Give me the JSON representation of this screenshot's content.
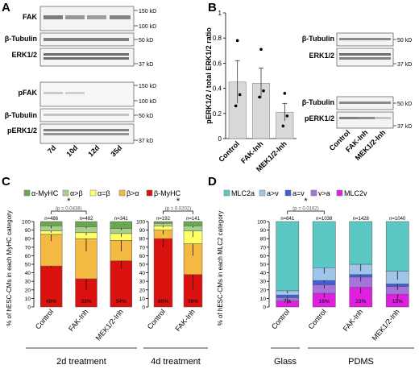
{
  "colors": {
    "ahc": "#6aa84f",
    "ab": "#a8d08d",
    "aeqb": "#ffff66",
    "ba": "#f4b942",
    "bhc": "#d9120f",
    "mlc2a": "#5bc8c4",
    "agtv": "#9fc5e8",
    "aeqv": "#3d5fd9",
    "vgta": "#a573d9",
    "mlc2v": "#e020e0",
    "bar_gray": "#d9d9d9"
  },
  "panelA": {
    "label": "A",
    "blots": [
      {
        "name": "FAK",
        "marks": [
          "150 kD",
          "100 kD"
        ]
      },
      {
        "name": "β-Tubulin",
        "marks": [
          "50 kD"
        ]
      },
      {
        "name": "ERK1/2",
        "marks": [
          "37 kD"
        ]
      },
      {
        "name": "pFAK",
        "marks": [
          "150 kD",
          "100 kD"
        ]
      },
      {
        "name": "β-Tubulin",
        "marks": [
          "50 kD"
        ]
      },
      {
        "name": "pERK1/2",
        "marks": [
          "37 kD"
        ]
      }
    ],
    "lanes": [
      "7d",
      "10d",
      "12d",
      "35d"
    ]
  },
  "panelB": {
    "label": "B",
    "chart_data": {
      "type": "bar",
      "categories": [
        "Control",
        "FAK-Inh",
        "MEK1/2-Inh"
      ],
      "values": [
        0.45,
        0.44,
        0.21
      ],
      "errors": [
        0.17,
        0.12,
        0.07
      ],
      "points": [
        [
          0.78,
          0.35,
          0.26
        ],
        [
          0.71,
          0.38,
          0.33
        ],
        [
          0.36,
          0.18,
          0.1
        ]
      ],
      "ylabel": "pERK1/2 / total ERK1/2 ratio",
      "ylim": [
        0,
        1
      ],
      "yticks": [
        "0",
        "0.2",
        "0.4",
        "0.6",
        "0.8",
        "1"
      ]
    },
    "blots": [
      {
        "name": "β-Tubulin",
        "mark": "50 kD"
      },
      {
        "name": "ERK1/2",
        "mark": "37 kD"
      },
      {
        "name": "β-Tubulin",
        "mark": "50 kD"
      },
      {
        "name": "pERK1/2",
        "mark": "37 kD"
      }
    ],
    "lanes": [
      "Control",
      "FAK-Inh",
      "MEK1/2-Inh"
    ]
  },
  "panelC": {
    "label": "C",
    "legend": [
      "α-MyHC",
      "α>β",
      "α=β",
      "β>α",
      "β-MyHC"
    ],
    "ylabel": "% of hESC-CMs in each MyHC category",
    "yticks": [
      "0",
      "10",
      "20",
      "30",
      "40",
      "50",
      "60",
      "70",
      "80",
      "90",
      "100"
    ],
    "chart_data": [
      {
        "type": "bar",
        "title": "2d treatment",
        "categories": [
          "Control",
          "FAK-Inh",
          "MEK1/2-Inh"
        ],
        "n": [
          "n=486",
          "n=482",
          "n=341"
        ],
        "pct": [
          "48%",
          "33%",
          "54%"
        ],
        "sig": "*",
        "pval": "(p = 0.0438)",
        "series": [
          {
            "name": "β-MyHC",
            "values": [
              48,
              33,
              54
            ],
            "errors": [
              2,
              13,
              9
            ]
          },
          {
            "name": "β>α",
            "values": [
              37,
              47,
              24
            ],
            "errors": [
              8,
              15,
              13
            ]
          },
          {
            "name": "α=β",
            "values": [
              4,
              7,
              8
            ],
            "errors": [
              2,
              3,
              4
            ]
          },
          {
            "name": "α>β",
            "values": [
              6,
              7,
              6
            ],
            "errors": [
              3,
              2,
              2
            ]
          },
          {
            "name": "α-MyHC",
            "values": [
              5,
              6,
              8
            ],
            "errors": [
              2,
              2,
              2
            ]
          }
        ]
      },
      {
        "type": "bar",
        "title": "4d treatment",
        "categories": [
          "Control",
          "FAK-Inh"
        ],
        "n": [
          "n=192",
          "n=141"
        ],
        "pct": [
          "80%",
          "38%"
        ],
        "sig": "*",
        "pval": "(p = 0.0202)",
        "series": [
          {
            "name": "β-MyHC",
            "values": [
              80,
              38
            ],
            "errors": [
              10,
              18
            ]
          },
          {
            "name": "β>α",
            "values": [
              10,
              36
            ],
            "errors": [
              5,
              14
            ]
          },
          {
            "name": "α=β",
            "values": [
              5,
              15
            ],
            "errors": [
              2,
              7
            ]
          },
          {
            "name": "α>β",
            "values": [
              3,
              6
            ],
            "errors": [
              1,
              2
            ]
          },
          {
            "name": "α-MyHC",
            "values": [
              2,
              5
            ],
            "errors": [
              1,
              2
            ]
          }
        ]
      }
    ]
  },
  "panelD": {
    "label": "D",
    "legend": [
      "MLC2a",
      "a>v",
      "a=v",
      "v>a",
      "MLC2v"
    ],
    "ylabel": "% of hESC-CMs in each MLC2 category",
    "yticks": [
      "0",
      "10",
      "20",
      "30",
      "40",
      "50",
      "60",
      "70",
      "80",
      "90",
      "100"
    ],
    "chart_data": {
      "type": "bar",
      "categories": [
        "Control",
        "Control",
        "FAK-Inh",
        "MEK1/2-Inh"
      ],
      "groups": [
        "Glass",
        "PDMS"
      ],
      "n": [
        "n=641",
        "n=1038",
        "n=1428",
        "n=1040"
      ],
      "pct": [
        "7%",
        "16%",
        "23%",
        "15%"
      ],
      "sig": "*",
      "pval": "(p = 0.0162)",
      "series": [
        {
          "name": "MLC2v",
          "values": [
            7,
            16,
            23,
            15
          ],
          "errors": [
            3,
            5,
            7,
            6
          ]
        },
        {
          "name": "v>a",
          "values": [
            4,
            10,
            12,
            9
          ],
          "errors": [
            2,
            4,
            5,
            4
          ]
        },
        {
          "name": "a=v",
          "values": [
            3,
            5,
            3,
            3
          ],
          "errors": [
            1,
            2,
            2,
            2
          ]
        },
        {
          "name": "a>v",
          "values": [
            5,
            15,
            12,
            15
          ],
          "errors": [
            3,
            7,
            8,
            10
          ]
        },
        {
          "name": "MLC2a",
          "values": [
            81,
            54,
            50,
            58
          ],
          "errors": [
            3,
            5,
            6,
            5
          ]
        }
      ]
    }
  }
}
